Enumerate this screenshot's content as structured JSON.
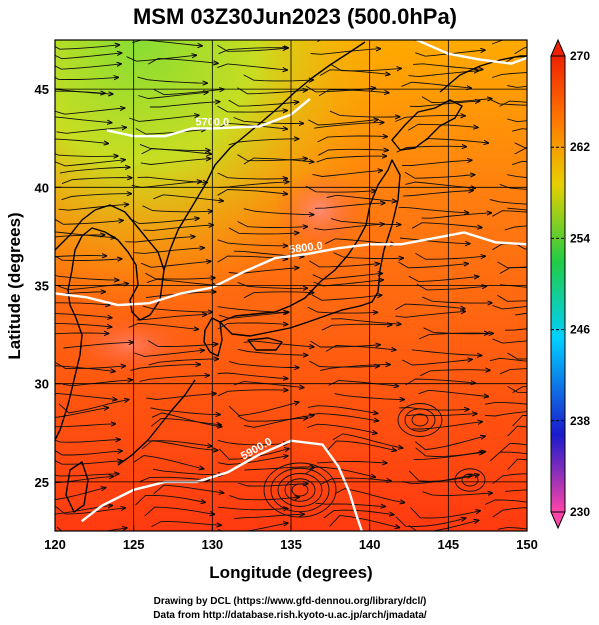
{
  "title": "MSM 03Z30Jun2023 (500.0hPa)",
  "xlabel": "Longitude (degrees)",
  "ylabel": "Latitude  (degrees)",
  "credits": [
    "Drawing by DCL (https://www.gfd-dennou.org/library/dcl/)",
    "Data from http://database.rish.kyoto-u.ac.jp/arch/jmadata/"
  ],
  "map": {
    "lon_range": [
      120,
      150
    ],
    "lat_range": [
      22.5,
      47.5
    ],
    "lon_ticks": [
      120,
      125,
      130,
      135,
      140,
      145,
      150
    ],
    "lat_ticks": [
      25,
      30,
      35,
      40,
      45
    ],
    "grid": true
  },
  "colorbar": {
    "min": 230,
    "max": 270,
    "tick_labels": [
      "270",
      "262",
      "254",
      "246",
      "238",
      "230"
    ],
    "tick_values": [
      270,
      262,
      254,
      246,
      238,
      230
    ],
    "colors": [
      "#ff44aa",
      "#1a1acc",
      "#00d0ff",
      "#22cc44",
      "#e8d000",
      "#ff7700",
      "#ee2200"
    ]
  },
  "contours": [
    {
      "label": "5700.0",
      "points": [
        [
          123.3,
          42.9
        ],
        [
          125,
          42.6
        ],
        [
          127,
          42.6
        ],
        [
          128.7,
          43.0
        ],
        [
          130,
          43.0
        ],
        [
          133,
          43.1
        ],
        [
          135,
          43.7
        ],
        [
          136.2,
          44.5
        ]
      ]
    },
    {
      "label": "5800.0",
      "points": [
        [
          120,
          34.6
        ],
        [
          122,
          34.4
        ],
        [
          124,
          34.0
        ],
        [
          126,
          34.1
        ],
        [
          128,
          34.6
        ],
        [
          130,
          34.9
        ],
        [
          132,
          35.7
        ],
        [
          134,
          36.4
        ],
        [
          136,
          36.6
        ],
        [
          138,
          36.9
        ],
        [
          140,
          37.1
        ],
        [
          142,
          37.1
        ],
        [
          144,
          37.4
        ],
        [
          146,
          37.7
        ],
        [
          148,
          37.2
        ],
        [
          150,
          37.1
        ]
      ]
    },
    {
      "label": "5900.0",
      "points": [
        [
          121.7,
          23.0
        ],
        [
          123,
          23.8
        ],
        [
          125,
          24.6
        ],
        [
          127,
          25.0
        ],
        [
          129,
          25.0
        ],
        [
          131,
          25.5
        ],
        [
          133,
          26.4
        ],
        [
          135,
          27.1
        ],
        [
          137,
          26.9
        ],
        [
          138,
          25.8
        ],
        [
          138.7,
          24.5
        ],
        [
          139.2,
          23.2
        ],
        [
          139.5,
          22.5
        ]
      ]
    },
    {
      "label": "",
      "points": [
        [
          143,
          47.5
        ],
        [
          145,
          46.8
        ],
        [
          147,
          46.5
        ],
        [
          149,
          46.3
        ],
        [
          150,
          46.6
        ]
      ]
    }
  ]
}
